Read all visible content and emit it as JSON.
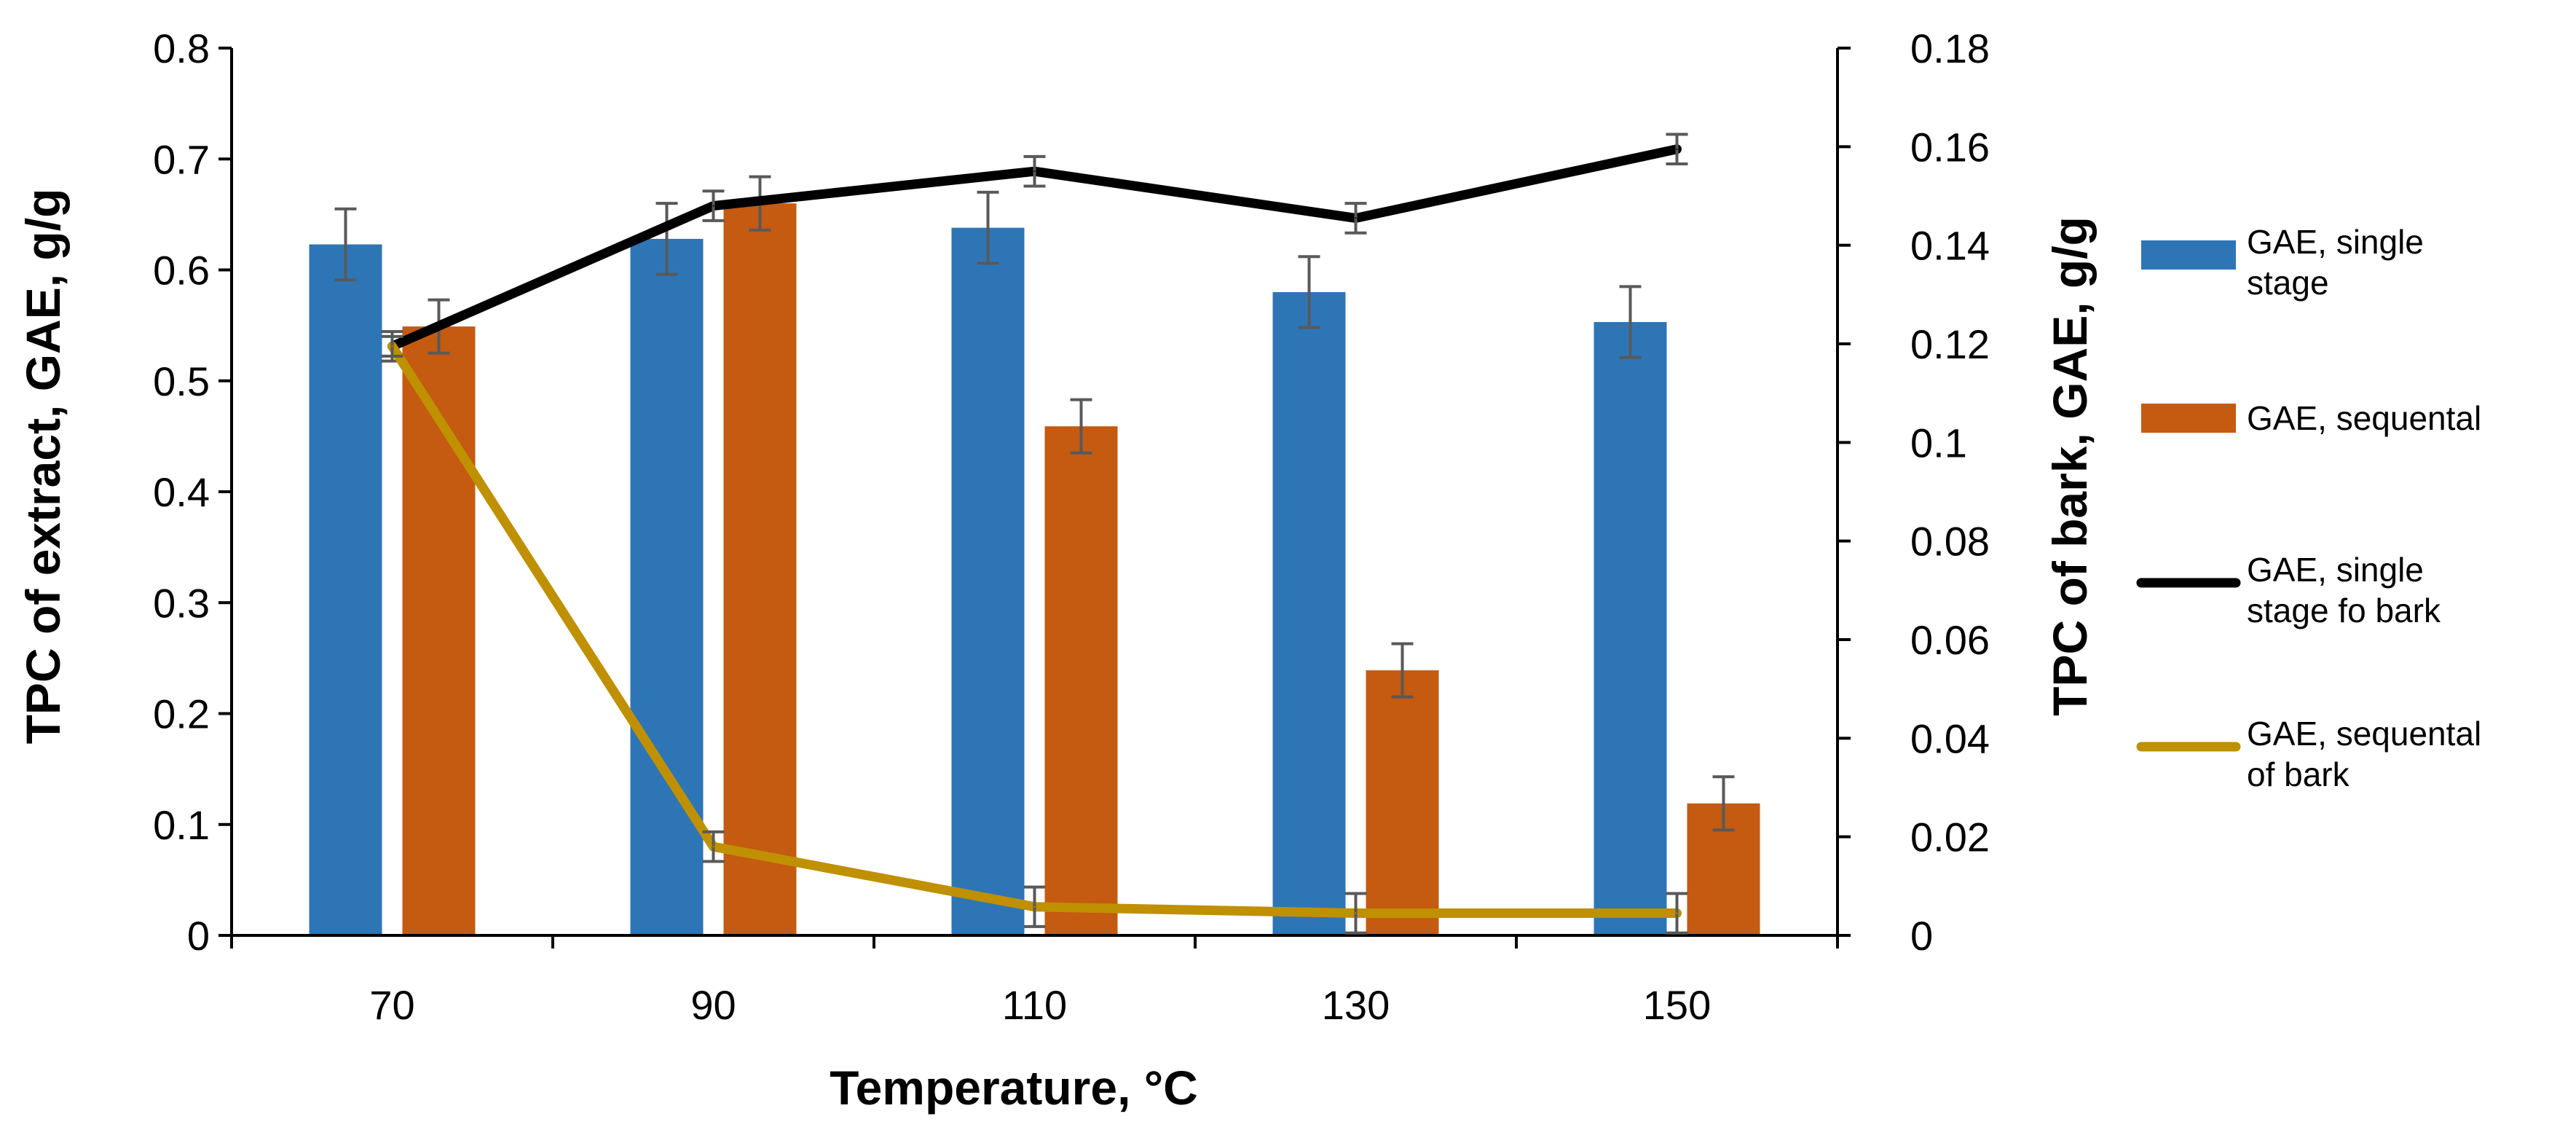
{
  "chart_data": {
    "type": "bar",
    "categories": [
      "70",
      "90",
      "110",
      "130",
      "150"
    ],
    "xlabel": "Temperature, °C",
    "ylabel_left": "TPC of extract, GAE, g/g",
    "ylabel_right": "TPC of bark, GAE, g/g",
    "ylim_left": [
      0,
      0.8
    ],
    "ylim_right": [
      0,
      0.18
    ],
    "yticks_left": [
      "0",
      "0.1",
      "0.2",
      "0.3",
      "0.4",
      "0.5",
      "0.6",
      "0.7",
      "0.8"
    ],
    "yticks_right": [
      "0",
      "0.02",
      "0.04",
      "0.06",
      "0.08",
      "0.1",
      "0.12",
      "0.14",
      "0.16",
      "0.18"
    ],
    "grid": false,
    "legend_position": "right",
    "series": [
      {
        "name": "GAE, single stage",
        "kind": "bar",
        "axis": "left",
        "color": "#2E75B6",
        "values": [
          0.623,
          0.628,
          0.638,
          0.58,
          0.553
        ],
        "errors": [
          0.032,
          0.032,
          0.032,
          0.032,
          0.032
        ]
      },
      {
        "name": "GAE, sequental",
        "kind": "bar",
        "axis": "left",
        "color": "#C55A11",
        "values": [
          0.549,
          0.66,
          0.459,
          0.239,
          0.119
        ],
        "errors": [
          0.024,
          0.024,
          0.024,
          0.024,
          0.024
        ]
      },
      {
        "name": "GAE, single stage fo bark",
        "kind": "line",
        "axis": "right",
        "color": "#000000",
        "values": [
          0.1195,
          0.148,
          0.155,
          0.1455,
          0.1595
        ],
        "errors": [
          0.003,
          0.003,
          0.003,
          0.003,
          0.003
        ]
      },
      {
        "name": "GAE, sequental of bark",
        "kind": "line",
        "axis": "right",
        "color": "#BF9000",
        "values": [
          0.1195,
          0.018,
          0.0058,
          0.0045,
          0.0045
        ],
        "errors": [
          0.002,
          0.003,
          0.004,
          0.004,
          0.004
        ]
      }
    ]
  }
}
